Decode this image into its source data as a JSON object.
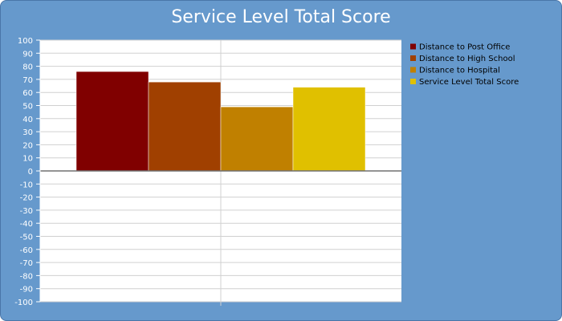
{
  "chart_data": {
    "type": "bar",
    "title": "Service Level Total Score",
    "xlabel": "",
    "ylabel": "",
    "ylim": [
      -100,
      100
    ],
    "ytick_step": 10,
    "grid": true,
    "legend_position": "right",
    "series": [
      {
        "name": "Distance to Post Office",
        "values": [
          76
        ],
        "color": "#800000"
      },
      {
        "name": "Distance to High School",
        "values": [
          68
        ],
        "color": "#a04000"
      },
      {
        "name": "Distance to Hospital",
        "values": [
          49
        ],
        "color": "#c08000"
      },
      {
        "name": "Service Level Total Score",
        "values": [
          64
        ],
        "color": "#e0c000"
      }
    ]
  }
}
